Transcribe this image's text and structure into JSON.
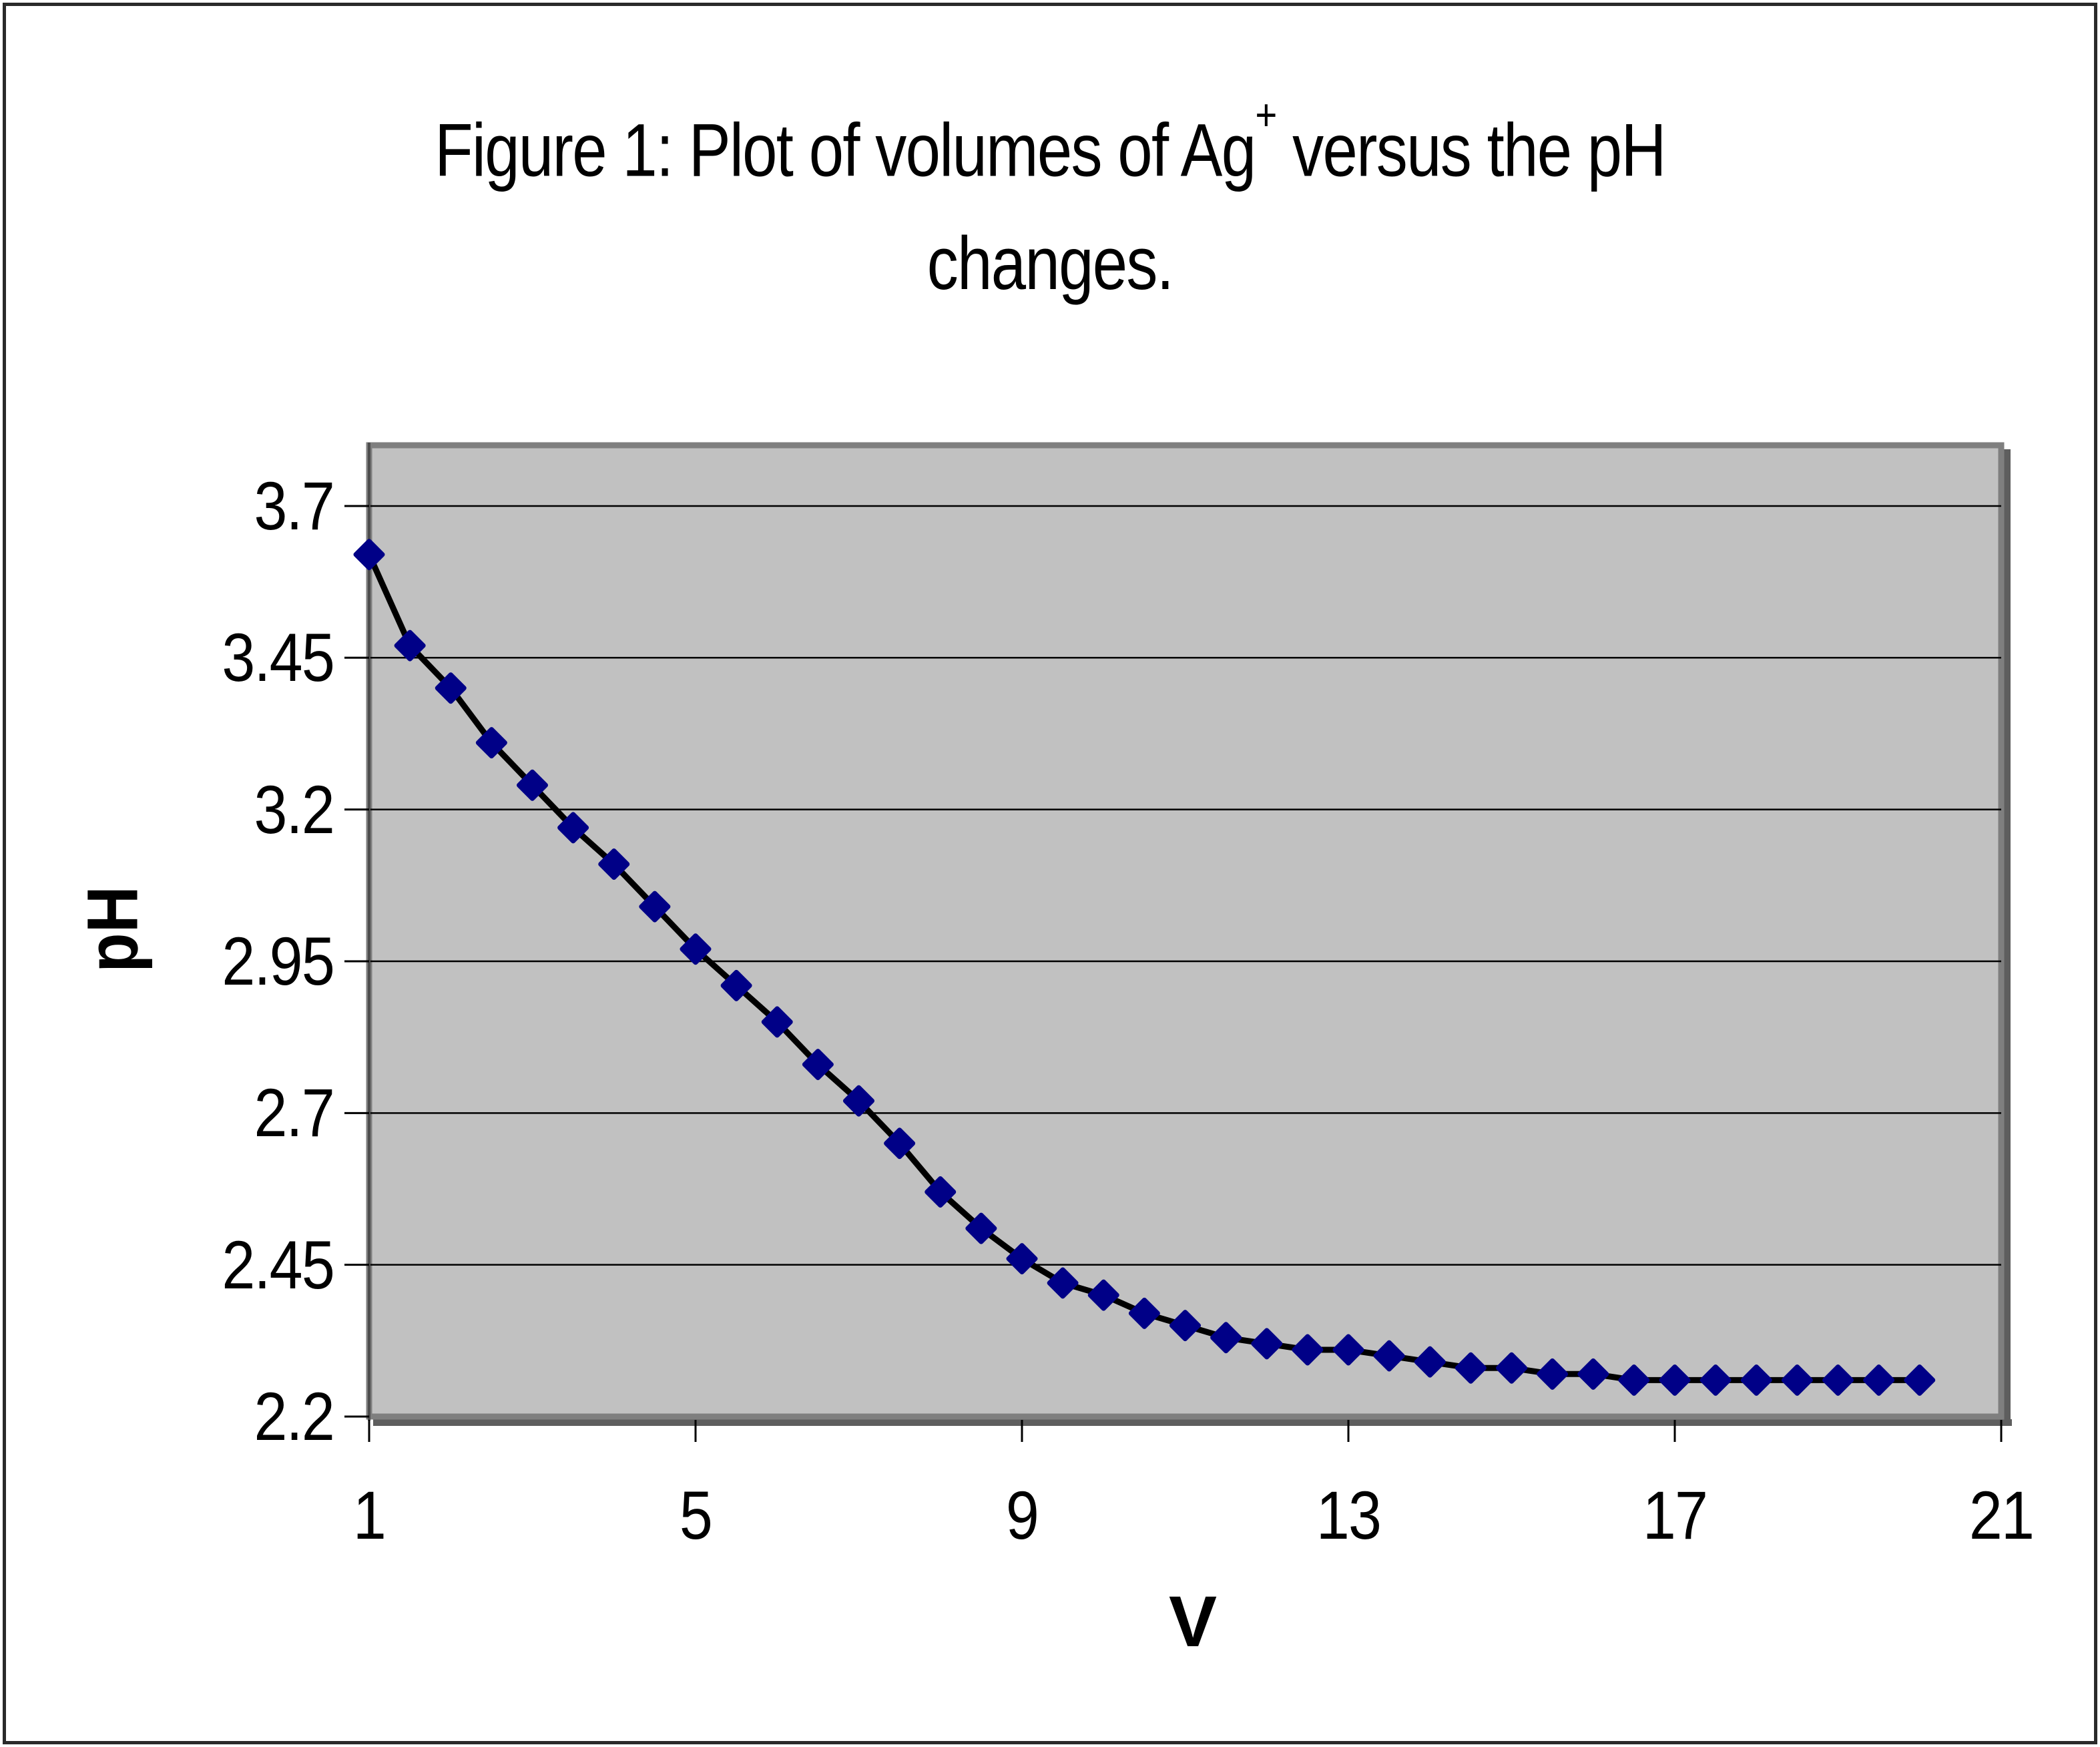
{
  "figure": {
    "title": {
      "line1_prefix": "Figure 1: Plot of volumes of Ag",
      "superscript": "+",
      "line1_suffix": " versus the pH",
      "line2": "changes."
    },
    "y_axis": {
      "label": "pH",
      "tick_labels": [
        "3.7",
        "3.45",
        "3.2",
        "2.95",
        "2.7",
        "2.45",
        "2.2"
      ]
    },
    "x_axis": {
      "label": "V",
      "tick_labels": [
        "1",
        "5",
        "9",
        "13",
        "17",
        "21"
      ]
    }
  },
  "colors": {
    "marker": "#000087",
    "series_line": "#000000",
    "plot_fill": "#C1C1C1",
    "plot_border": "#7F7F7F",
    "plot_shadow": "#5E5E5E",
    "axis_line": "#4D4D4D",
    "gridline": "#000000",
    "tick": "#000000",
    "text": "#000000",
    "background": "#FFFFFF"
  },
  "chart_data": {
    "type": "line",
    "title": "Figure 1: Plot of volumes of Ag+ versus the pH changes.",
    "xlabel": "V",
    "ylabel": "pH",
    "xlim": [
      1,
      21
    ],
    "ylim": [
      2.2,
      3.8
    ],
    "x_ticks": [
      1,
      5,
      9,
      13,
      17,
      21
    ],
    "y_ticks": [
      3.7,
      3.45,
      3.2,
      2.95,
      2.7,
      2.45,
      2.2
    ],
    "grid": "horizontal",
    "legend": false,
    "marker": "diamond",
    "series": [
      {
        "name": "pH",
        "x": [
          1,
          1.5,
          2,
          2.5,
          3,
          3.5,
          4,
          4.5,
          5,
          5.5,
          6,
          6.5,
          7,
          7.5,
          8,
          8.5,
          9,
          9.5,
          10,
          10.5,
          11,
          11.5,
          12,
          12.5,
          13,
          13.5,
          14,
          14.5,
          15,
          15.5,
          16,
          16.5,
          17,
          17.5,
          18,
          18.5,
          19,
          19.5,
          20
        ],
        "y": [
          3.62,
          3.47,
          3.4,
          3.31,
          3.24,
          3.17,
          3.11,
          3.04,
          2.97,
          2.91,
          2.85,
          2.78,
          2.72,
          2.65,
          2.57,
          2.51,
          2.46,
          2.42,
          2.4,
          2.37,
          2.35,
          2.33,
          2.32,
          2.31,
          2.31,
          2.3,
          2.29,
          2.28,
          2.28,
          2.27,
          2.27,
          2.26,
          2.26,
          2.26,
          2.26,
          2.26,
          2.26,
          2.26,
          2.26
        ]
      }
    ]
  }
}
